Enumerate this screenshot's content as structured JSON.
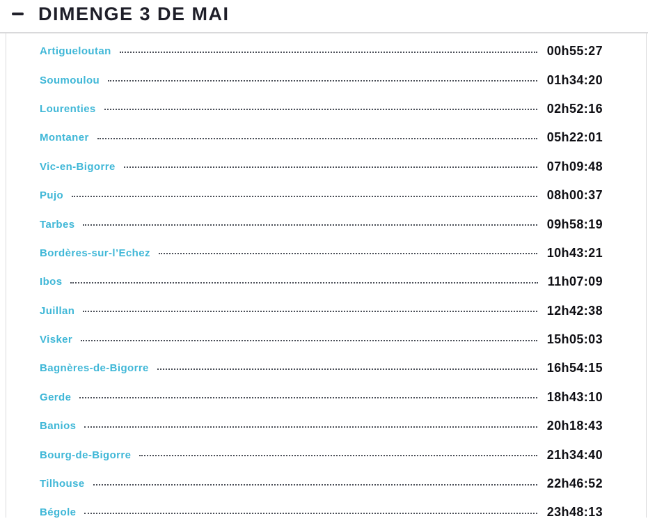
{
  "header": {
    "title": "DIMENGE 3 DE MAI",
    "collapse_icon": "minus-icon"
  },
  "colors": {
    "accent_cyan": "#3fb7d7",
    "text_dark": "#0f0f14",
    "title_dark": "#1e1e28",
    "leader_dots": "#4a4e57",
    "divider_gray": "#d9d9db"
  },
  "schedule": {
    "rows": [
      {
        "place": "Artigueloutan",
        "time": "00h55:27"
      },
      {
        "place": "Soumoulou",
        "time": "01h34:20"
      },
      {
        "place": "Lourenties",
        "time": "02h52:16"
      },
      {
        "place": "Montaner",
        "time": "05h22:01"
      },
      {
        "place": "Vic-en-Bigorre",
        "time": "07h09:48"
      },
      {
        "place": "Pujo",
        "time": "08h00:37"
      },
      {
        "place": "Tarbes",
        "time": "09h58:19"
      },
      {
        "place": "Bordères-sur-l’Echez",
        "time": "10h43:21"
      },
      {
        "place": "Ibos",
        "time": "11h07:09"
      },
      {
        "place": "Juillan",
        "time": "12h42:38"
      },
      {
        "place": "Visker",
        "time": "15h05:03"
      },
      {
        "place": "Bagnères-de-Bigorre",
        "time": "16h54:15"
      },
      {
        "place": "Gerde",
        "time": "18h43:10"
      },
      {
        "place": "Banios",
        "time": "20h18:43"
      },
      {
        "place": "Bourg-de-Bigorre",
        "time": "21h34:40"
      },
      {
        "place": "Tilhouse",
        "time": "22h46:52"
      },
      {
        "place": "Bégole",
        "time": "23h48:13"
      }
    ]
  }
}
